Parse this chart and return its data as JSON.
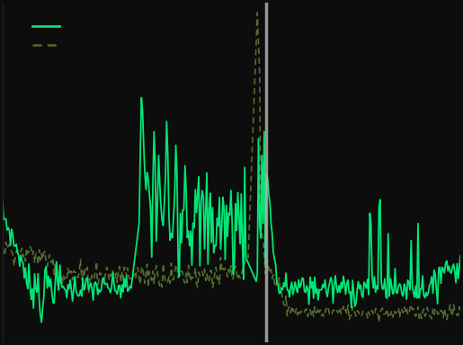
{
  "background_color": "#0d0d0d",
  "line1_color": "#00e676",
  "line2_color": "#556b2f",
  "vline_color": "#b0b0b0",
  "vline_x": 0.575,
  "figsize": [
    5.15,
    3.84
  ],
  "dpi": 100,
  "ylim": [
    0.0,
    1.0
  ],
  "xlim": [
    0.0,
    1.0
  ]
}
